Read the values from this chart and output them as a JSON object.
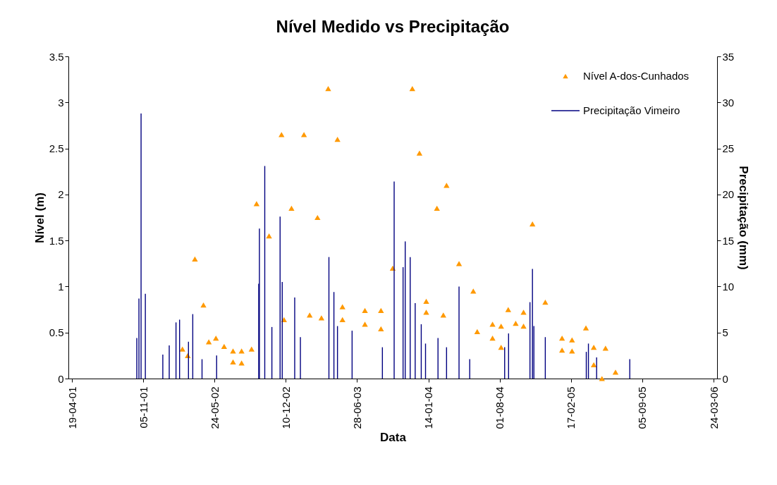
{
  "chart_data": {
    "type": "scatter",
    "title": "Nível Medido vs Precipitação",
    "xlabel": "Data",
    "ylabel": "Nível (m)",
    "y2label": "Precipitação (mm)",
    "xlim": [
      "2001-04-19",
      "2006-03-24"
    ],
    "xticks": [
      {
        "value": "2001-04-19",
        "label": "19-04-01"
      },
      {
        "value": "2001-11-05",
        "label": "05-11-01"
      },
      {
        "value": "2002-05-24",
        "label": "24-05-02"
      },
      {
        "value": "2002-12-10",
        "label": "10-12-02"
      },
      {
        "value": "2003-06-28",
        "label": "28-06-03"
      },
      {
        "value": "2004-01-14",
        "label": "14-01-04"
      },
      {
        "value": "2004-08-01",
        "label": "01-08-04"
      },
      {
        "value": "2005-02-17",
        "label": "17-02-05"
      },
      {
        "value": "2005-09-05",
        "label": "05-09-05"
      },
      {
        "value": "2006-03-24",
        "label": "24-03-06"
      }
    ],
    "ylim": [
      0,
      3.5
    ],
    "yticks": [
      0,
      0.5,
      1,
      1.5,
      2,
      2.5,
      3,
      3.5
    ],
    "y2lim": [
      0,
      35
    ],
    "y2ticks": [
      0,
      5,
      10,
      15,
      20,
      25,
      30,
      35
    ],
    "grid": false,
    "legend": "top right",
    "marker": "triangle",
    "series": [
      {
        "name": "Nível A-dos-Cunhados",
        "color": "#ff9900",
        "x": [
          "2002-02-23",
          "2002-03-10",
          "2002-03-30",
          "2002-04-23",
          "2002-05-08",
          "2002-05-28",
          "2002-06-20",
          "2002-07-15",
          "2002-07-15",
          "2002-08-08",
          "2002-08-08",
          "2002-09-05",
          "2002-09-19",
          "2002-10-24",
          "2002-11-28",
          "2002-12-05",
          "2002-12-26",
          "2003-01-30",
          "2003-02-15",
          "2003-03-09",
          "2003-03-20",
          "2003-04-08",
          "2003-05-04",
          "2003-05-18",
          "2003-05-18",
          "2003-07-20",
          "2003-07-20",
          "2003-09-03",
          "2003-09-03",
          "2003-10-06",
          "2003-11-30",
          "2003-12-20",
          "2004-01-08",
          "2004-01-08",
          "2004-02-07",
          "2004-02-25",
          "2004-03-05",
          "2004-04-09",
          "2004-05-19",
          "2004-05-30",
          "2004-07-12",
          "2004-07-12",
          "2004-08-05",
          "2004-08-05",
          "2004-08-25",
          "2004-09-15",
          "2004-10-07",
          "2004-10-07",
          "2004-11-01",
          "2004-12-07",
          "2005-01-23",
          "2005-01-23",
          "2005-02-20",
          "2005-02-20",
          "2005-03-31",
          "2005-04-22",
          "2005-04-22",
          "2005-05-15",
          "2005-05-25",
          "2005-06-22"
        ],
        "values": [
          0.32,
          0.25,
          1.3,
          0.8,
          0.4,
          0.44,
          0.35,
          0.3,
          0.18,
          0.3,
          0.17,
          0.32,
          1.9,
          1.55,
          2.65,
          0.64,
          1.85,
          2.65,
          0.69,
          1.75,
          0.66,
          3.15,
          2.6,
          0.78,
          0.64,
          0.74,
          0.59,
          0.74,
          0.54,
          1.2,
          3.15,
          2.45,
          0.84,
          0.72,
          1.85,
          0.69,
          2.1,
          1.25,
          0.95,
          0.51,
          0.59,
          0.44,
          0.57,
          0.34,
          0.75,
          0.6,
          0.72,
          0.57,
          1.68,
          0.83,
          0.44,
          0.31,
          0.42,
          0.3,
          0.55,
          0.34,
          0.15,
          0.0,
          0.33,
          0.07
        ]
      },
      {
        "name": "Precipitação Vimeiro",
        "type": "bar",
        "axis": "y2",
        "color": "#000080",
        "x": [
          "2001-10-18",
          "2001-10-24",
          "2001-10-30",
          "2001-11-11",
          "2001-12-30",
          "2002-01-17",
          "2002-02-05",
          "2002-02-15",
          "2002-03-12",
          "2002-03-24",
          "2002-04-19",
          "2002-05-30",
          "2002-09-25",
          "2002-09-27",
          "2002-10-12",
          "2002-11-01",
          "2002-11-24",
          "2002-11-30",
          "2003-01-04",
          "2003-01-20",
          "2003-04-10",
          "2003-04-24",
          "2003-05-04",
          "2003-06-14",
          "2003-09-07",
          "2003-10-10",
          "2003-11-04",
          "2003-11-10",
          "2003-11-24",
          "2003-12-08",
          "2003-12-25",
          "2004-01-06",
          "2004-02-10",
          "2004-03-05",
          "2004-04-09",
          "2004-05-09",
          "2004-08-15",
          "2004-08-26",
          "2004-10-25",
          "2004-11-01",
          "2004-11-05",
          "2004-12-07",
          "2005-04-01",
          "2005-04-07",
          "2005-04-30",
          "2005-08-01"
        ],
        "values": [
          4.4,
          8.7,
          28.8,
          9.2,
          2.6,
          3.6,
          6.1,
          6.4,
          4.0,
          7.0,
          2.1,
          2.5,
          10.3,
          16.3,
          23.1,
          5.6,
          17.6,
          10.5,
          8.8,
          4.5,
          13.2,
          9.4,
          5.7,
          5.2,
          3.4,
          21.4,
          12.1,
          14.9,
          13.2,
          8.2,
          5.9,
          3.8,
          4.4,
          3.4,
          10.0,
          2.1,
          3.4,
          4.9,
          8.3,
          11.9,
          5.7,
          4.5,
          2.9,
          3.8,
          2.3,
          2.1
        ]
      }
    ]
  }
}
